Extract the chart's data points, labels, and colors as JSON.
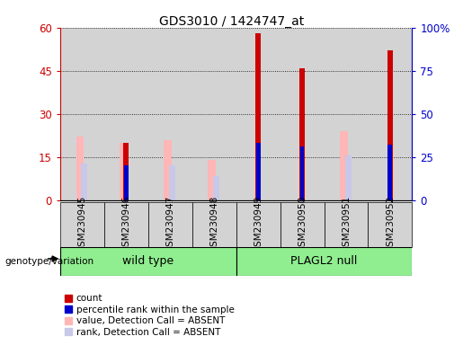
{
  "title": "GDS3010 / 1424747_at",
  "samples": [
    "GSM230945",
    "GSM230946",
    "GSM230947",
    "GSM230948",
    "GSM230949",
    "GSM230950",
    "GSM230951",
    "GSM230952"
  ],
  "count": [
    0,
    20,
    0,
    0,
    58,
    46,
    0,
    52
  ],
  "percentile_rank": [
    0,
    20,
    0,
    0,
    33,
    31,
    0,
    32
  ],
  "value_absent": [
    22,
    20,
    21,
    14,
    0,
    0,
    24,
    0
  ],
  "rank_absent": [
    21,
    0,
    20,
    14,
    0,
    0,
    26,
    0
  ],
  "groups": [
    {
      "label": "wild type",
      "start": 0,
      "end": 4,
      "color": "#90EE90"
    },
    {
      "label": "PLAGL2 null",
      "start": 4,
      "end": 8,
      "color": "#90EE90"
    }
  ],
  "group_label_prefix": "genotype/variation",
  "ylim_left": [
    0,
    60
  ],
  "ylim_right": [
    0,
    100
  ],
  "yticks_left": [
    0,
    15,
    30,
    45,
    60
  ],
  "ytick_labels_left": [
    "0",
    "15",
    "30",
    "45",
    "60"
  ],
  "yticks_right": [
    0,
    25,
    50,
    75,
    100
  ],
  "ytick_labels_right": [
    "0",
    "25",
    "50",
    "75",
    "100%"
  ],
  "count_color": "#cc0000",
  "percentile_color": "#0000cc",
  "value_absent_color": "#ffb6b6",
  "rank_absent_color": "#c8c8e8",
  "col_bg_color": "#d3d3d3",
  "plot_bg_color": "#ffffff",
  "count_bar_width": 0.12,
  "absent_bar_width": 0.18,
  "rank_bar_width": 0.14,
  "percentile_bar_width": 0.1
}
